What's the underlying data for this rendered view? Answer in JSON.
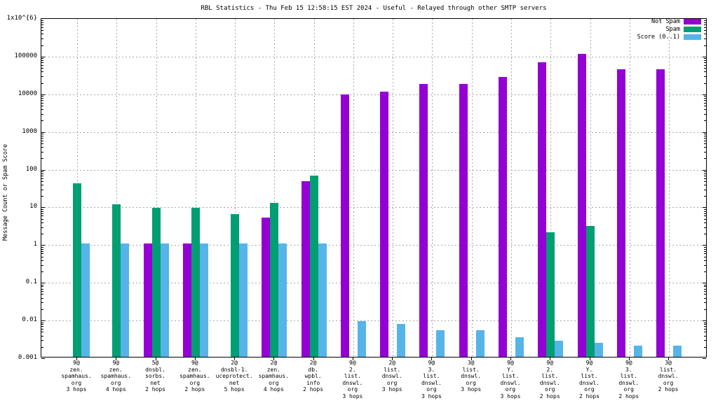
{
  "chart_data": {
    "type": "bar",
    "title": "RBL Statistics - Thu Feb 15 12:58:15 EST 2024 - Useful - Relayed through other SMTP servers",
    "ylabel": "Message Count or Spam Score",
    "y_scale": "log",
    "ylim": [
      0.001,
      1000000
    ],
    "grid": true,
    "legend_position": "top-right",
    "y_ticks": [
      {
        "label": "0.001",
        "value": 0.001
      },
      {
        "label": "0.01",
        "value": 0.01
      },
      {
        "label": "0.1",
        "value": 0.1
      },
      {
        "label": "1",
        "value": 1
      },
      {
        "label": "10",
        "value": 10
      },
      {
        "label": "100",
        "value": 100
      },
      {
        "label": "1000",
        "value": 1000
      },
      {
        "label": "10000",
        "value": 10000
      },
      {
        "label": "100000",
        "value": 100000
      },
      {
        "label": "1x10^{6}",
        "value": 1000000
      }
    ],
    "categories": [
      [
        "9@",
        "zen.",
        "spamhaus.",
        "org",
        "3 hops"
      ],
      [
        "9@",
        "zen.",
        "spamhaus.",
        "org",
        "4 hops"
      ],
      [
        "5@",
        "dnsbl.",
        "sorbs.",
        "net",
        "2 hops"
      ],
      [
        "9@",
        "zen.",
        "spamhaus.",
        "org",
        "2 hops"
      ],
      [
        "2@",
        "dnsbl-1.",
        "uceprotect.",
        "net",
        "5 hops"
      ],
      [
        "2@",
        "zen.",
        "spamhaus.",
        "org",
        "4 hops"
      ],
      [
        "2@",
        "db.",
        "wpbl.",
        "info",
        "2 hops"
      ],
      [
        "9@",
        "2.",
        "list.",
        "dnswl.",
        "org",
        "3 hops"
      ],
      [
        "2@",
        "list.",
        "dnswl.",
        "org",
        "3 hops"
      ],
      [
        "9@",
        "3.",
        "list.",
        "dnswl.",
        "org",
        "3 hops"
      ],
      [
        "3@",
        "list.",
        "dnswl.",
        "org",
        "3 hops"
      ],
      [
        "9@",
        "Y.",
        "list.",
        "dnswl.",
        "org",
        "3 hops"
      ],
      [
        "9@",
        "2.",
        "list.",
        "dnswl.",
        "org",
        "2 hops"
      ],
      [
        "9@",
        "Y.",
        "list.",
        "dnswl.",
        "org",
        "2 hops"
      ],
      [
        "9@",
        "3.",
        "list.",
        "dnswl.",
        "org",
        "2 hops"
      ],
      [
        "3@",
        "list.",
        "dnswl.",
        "org",
        "2 hops"
      ]
    ],
    "series": [
      {
        "name": "Not Spam",
        "color": "#9400d3",
        "values": [
          0,
          0,
          1,
          1,
          0,
          5,
          45,
          9000,
          11000,
          17000,
          17000,
          27000,
          65000,
          110000,
          43000,
          43000
        ]
      },
      {
        "name": "Spam",
        "color": "#009e73",
        "values": [
          40,
          11,
          9,
          9,
          6,
          12,
          65,
          0,
          0,
          0,
          0,
          0,
          2,
          3,
          0,
          0
        ]
      },
      {
        "name": "Score (0..1)",
        "color": "#56b4e9",
        "values": [
          1,
          1,
          1,
          1,
          1,
          1,
          1,
          0.009,
          0.0075,
          0.005,
          0.005,
          0.0033,
          0.0027,
          0.0024,
          0.002,
          0.002
        ]
      }
    ]
  },
  "colors": {
    "background": "#ffffff",
    "frame": "#000000",
    "grid": "#a8a8a8"
  }
}
